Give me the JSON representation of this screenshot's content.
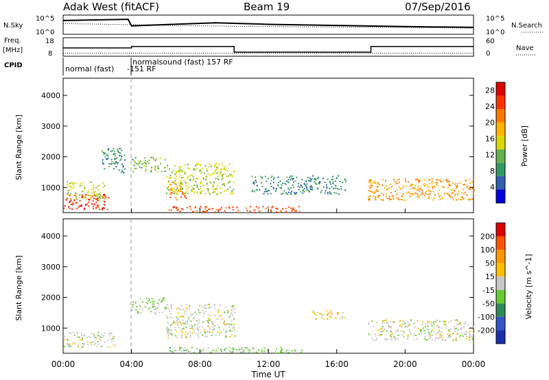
{
  "header": {
    "station": "Adak West (fitACF)",
    "beam": "Beam 19",
    "date": "07/Sep/2016"
  },
  "labels": {
    "nsky": "N.Sky",
    "nsearch": "N.Search",
    "freq": "Freq.",
    "freq_unit": "[MHz]",
    "nave": "Nave",
    "cpid": "CPID",
    "nsky_ticks": [
      "10^5",
      "10^0"
    ],
    "freq_ticks": [
      "18",
      "8"
    ],
    "nave_ticks": [
      "60",
      "0"
    ],
    "cpid_labels": [
      "normal (fast)",
      "-151 RF",
      "normalsound (fast) 157 RF"
    ],
    "xlabel": "Time UT"
  },
  "chart_data": [
    {
      "type": "line",
      "title": "N.Sky / N.Search",
      "x_range_hours": [
        0,
        24
      ],
      "series": [
        {
          "name": "N.Sky",
          "x_hours": [
            0,
            3.8,
            4.0,
            8.9,
            12,
            16,
            20,
            24
          ],
          "log10_values": [
            3.6,
            3.9,
            2.2,
            3.0,
            2.6,
            2.3,
            2.0,
            1.8
          ]
        },
        {
          "name": "N.Search",
          "x_hours": [
            0,
            4,
            8,
            12,
            16,
            20,
            24
          ],
          "log10_values": [
            2.8,
            2.5,
            2.2,
            2.0,
            1.9,
            1.8,
            1.6
          ]
        }
      ]
    },
    {
      "type": "line",
      "title": "Freq. / Nave",
      "x_range_hours": [
        0,
        24
      ],
      "series": [
        {
          "name": "Freq.",
          "unit": "MHz",
          "x_hours": [
            0,
            4,
            4,
            10,
            10,
            18,
            18,
            24
          ],
          "values": [
            12.5,
            12.5,
            13.3,
            13.3,
            10.2,
            10.2,
            13.3,
            13.3
          ]
        },
        {
          "name": "Nave",
          "x_hours": [
            0,
            24
          ],
          "values": [
            10,
            10
          ]
        }
      ]
    },
    {
      "type": "heatmap",
      "title": "Power",
      "xlabel": "Time UT",
      "ylabel": "Slant Range [km]",
      "x_ticks": [
        "00:00",
        "04:00",
        "08:00",
        "12:00",
        "16:00",
        "20:00",
        "00:00"
      ],
      "y_ticks": [
        "1000",
        "2000",
        "3000",
        "4000"
      ],
      "ylim": [
        180,
        4560
      ],
      "colorbar": {
        "label": "Power [dB]",
        "ticks": [
          "4",
          "8",
          "12",
          "16",
          "20",
          "24",
          "28"
        ],
        "range": [
          0,
          30
        ],
        "colors": [
          "#0000e0",
          "#3060b0",
          "#339966",
          "#66b24d",
          "#d9d900",
          "#ffb300",
          "#ff7a00",
          "#ff3300",
          "#e00000"
        ]
      },
      "regions": [
        {
          "x": [
            0.0,
            2.6
          ],
          "range_km": [
            300,
            800
          ],
          "value": 26
        },
        {
          "x": [
            0.2,
            2.4
          ],
          "range_km": [
            600,
            1200
          ],
          "value": 14
        },
        {
          "x": [
            2.2,
            3.6
          ],
          "range_km": [
            1500,
            2300
          ],
          "value": 8
        },
        {
          "x": [
            4.0,
            6.0
          ],
          "range_km": [
            1500,
            2000
          ],
          "value": 12
        },
        {
          "x": [
            6.2,
            7.2
          ],
          "range_km": [
            600,
            1200
          ],
          "value": 22
        },
        {
          "x": [
            6.0,
            10.0
          ],
          "range_km": [
            800,
            1800
          ],
          "value": 14
        },
        {
          "x": [
            6.0,
            14.0
          ],
          "range_km": [
            200,
            400
          ],
          "value": 24
        },
        {
          "x": [
            11.0,
            16.5
          ],
          "range_km": [
            800,
            1400
          ],
          "value": 8
        },
        {
          "x": [
            17.8,
            24.0
          ],
          "range_km": [
            600,
            1300
          ],
          "value": 20
        }
      ]
    },
    {
      "type": "heatmap",
      "title": "Velocity",
      "xlabel": "Time UT",
      "ylabel": "Slant Range [km]",
      "x_ticks": [
        "00:00",
        "04:00",
        "08:00",
        "12:00",
        "16:00",
        "20:00",
        "00:00"
      ],
      "y_ticks": [
        "1000",
        "2000",
        "3000",
        "4000"
      ],
      "ylim": [
        180,
        4560
      ],
      "colorbar": {
        "label": "Velocity [m s^-1]",
        "ticks": [
          "200",
          "100",
          "50",
          "15",
          "-15",
          "-50",
          "-100",
          "-200"
        ],
        "range": [
          -250,
          250
        ],
        "colors": [
          "#1a2fb0",
          "#3355cc",
          "#2e8b57",
          "#66cc33",
          "#c8c8c8",
          "#ffc000",
          "#ff9900",
          "#ff5500",
          "#e00000"
        ]
      },
      "regions": [
        {
          "x": [
            0.0,
            3.0
          ],
          "range_km": [
            400,
            900
          ],
          "value": 0
        },
        {
          "x": [
            4.0,
            6.0
          ],
          "range_km": [
            1500,
            2000
          ],
          "value": -30
        },
        {
          "x": [
            6.0,
            10.0
          ],
          "range_km": [
            700,
            1800
          ],
          "value": 0
        },
        {
          "x": [
            6.0,
            14.0
          ],
          "range_km": [
            200,
            400
          ],
          "value": -40
        },
        {
          "x": [
            14.5,
            16.5
          ],
          "range_km": [
            1300,
            1600
          ],
          "value": 40
        },
        {
          "x": [
            17.8,
            24.0
          ],
          "range_km": [
            600,
            1300
          ],
          "value": 0
        }
      ]
    }
  ]
}
